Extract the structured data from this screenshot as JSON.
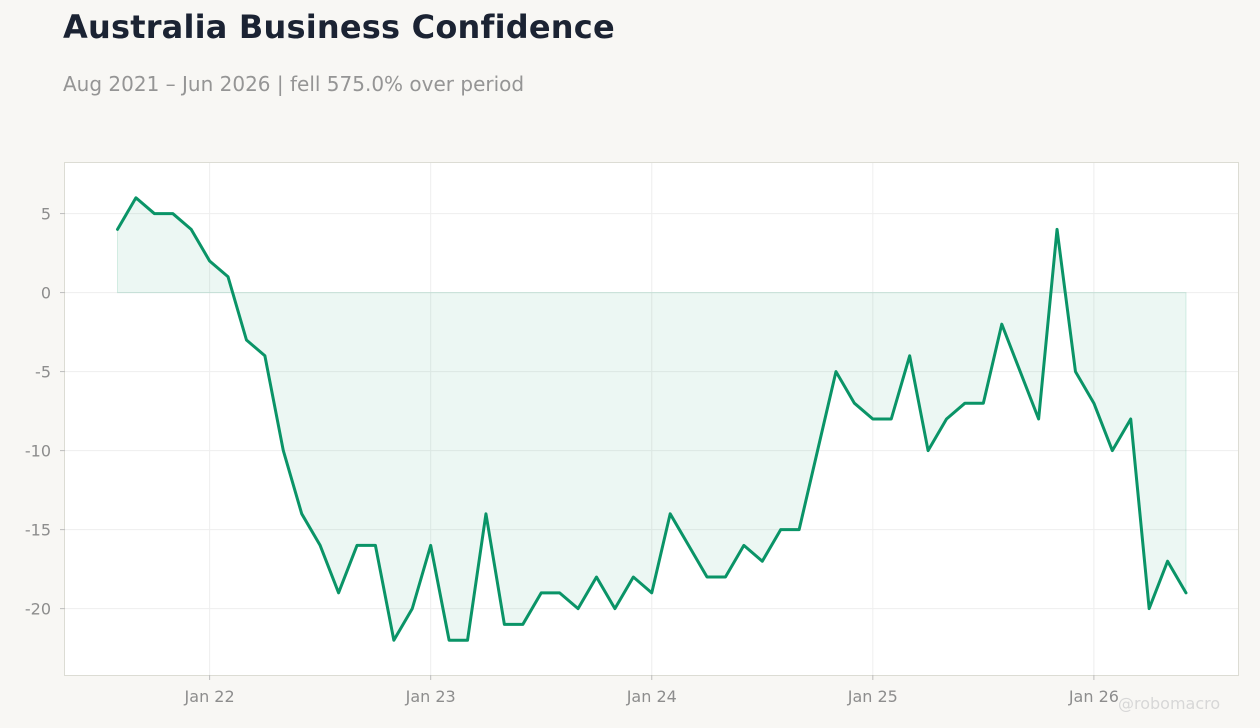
{
  "header": {
    "title": "Australia Business Confidence",
    "subtitle": "Aug 2021 – Jun 2026 | fell 575.0% over period"
  },
  "watermark": "@robomacro",
  "colors": {
    "background": "#f8f7f4",
    "plot_background": "#ffffff",
    "line": "#0a9467",
    "fill": "#0a9467",
    "grid": "#eeeeee",
    "axis": "#dcdcd4"
  },
  "chart_data": {
    "type": "area",
    "x_start": "2021-08",
    "x_frequency": "monthly",
    "values": [
      4,
      6,
      5,
      5,
      4,
      2,
      1,
      -3,
      -4,
      -10,
      -14,
      -16,
      -19,
      -16,
      -16,
      -22,
      -20,
      -16,
      -22,
      -22,
      -14,
      -21,
      -21,
      -19,
      -19,
      -20,
      -18,
      -20,
      -18,
      -19,
      -14,
      -16,
      -18,
      -18,
      -16,
      -17,
      -15,
      -15,
      -10,
      -5,
      -7,
      -8,
      -8,
      -4,
      -10,
      -8,
      -7,
      -7,
      -2,
      -5,
      -8,
      4,
      -5,
      -7,
      -10,
      -8,
      -20,
      -17,
      -19
    ],
    "x_ticks": [
      "Jan 22",
      "Jan 23",
      "Jan 24",
      "Jan 25",
      "Jan 26"
    ],
    "y_ticks": [
      "5",
      "0",
      "-5",
      "-10",
      "-15",
      "-20"
    ],
    "ylim": [
      -24.2,
      8.2
    ],
    "grid": true,
    "fill_to": 0
  }
}
